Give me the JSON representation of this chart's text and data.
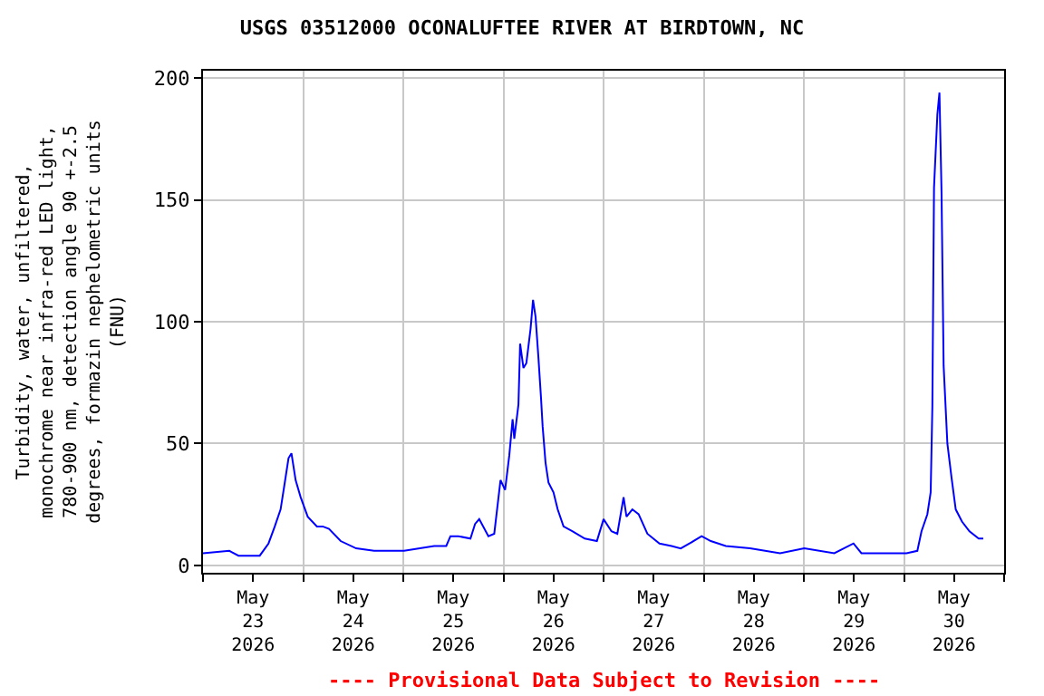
{
  "chart_data": {
    "type": "line",
    "title": "USGS 03512000 OCONALUFTEE RIVER AT BIRDTOWN, NC",
    "ylabel": "Turbidity, water, unfiltered,\nmonochrome near infra-red LED light,\n780-900 nm, detection angle 90 +-2.5\ndegrees, formazin nephelometric units\n(FNU)",
    "annotations": [
      "---- Provisional Data Subject to Revision ----"
    ],
    "x": [
      "2026-05-23T00:00",
      "2026-05-23T06:18",
      "2026-05-23T08:30",
      "2026-05-23T13:36",
      "2026-05-23T15:42",
      "2026-05-23T17:12",
      "2026-05-23T18:36",
      "2026-05-23T19:36",
      "2026-05-23T20:30",
      "2026-05-23T21:12",
      "2026-05-23T22:12",
      "2026-05-23T23:24",
      "2026-05-24T01:06",
      "2026-05-24T03:18",
      "2026-05-24T04:42",
      "2026-05-24T06:12",
      "2026-05-24T09:00",
      "2026-05-24T12:42",
      "2026-05-24T17:00",
      "2026-05-25T00:12",
      "2026-05-25T07:24",
      "2026-05-25T10:18",
      "2026-05-25T11:18",
      "2026-05-25T13:12",
      "2026-05-25T16:06",
      "2026-05-25T17:12",
      "2026-05-25T18:12",
      "2026-05-25T20:24",
      "2026-05-25T21:48",
      "2026-05-25T23:18",
      "2026-05-26T00:24",
      "2026-05-26T01:24",
      "2026-05-26T02:12",
      "2026-05-26T02:36",
      "2026-05-26T03:36",
      "2026-05-26T04:00",
      "2026-05-26T04:48",
      "2026-05-26T05:30",
      "2026-05-26T06:30",
      "2026-05-26T07:06",
      "2026-05-26T07:42",
      "2026-05-26T08:24",
      "2026-05-26T09:00",
      "2026-05-26T09:24",
      "2026-05-26T10:06",
      "2026-05-26T10:48",
      "2026-05-26T12:00",
      "2026-05-26T13:00",
      "2026-05-26T14:24",
      "2026-05-26T16:36",
      "2026-05-26T19:30",
      "2026-05-26T22:24",
      "2026-05-27T00:00",
      "2026-05-27T01:54",
      "2026-05-27T03:18",
      "2026-05-27T04:48",
      "2026-05-27T05:30",
      "2026-05-27T06:54",
      "2026-05-27T08:24",
      "2026-05-27T10:30",
      "2026-05-27T13:24",
      "2026-05-27T16:18",
      "2026-05-27T18:30",
      "2026-05-27T20:36",
      "2026-05-27T23:30",
      "2026-05-28T01:42",
      "2026-05-28T05:18",
      "2026-05-28T11:06",
      "2026-05-28T18:18",
      "2026-05-29T00:06",
      "2026-05-29T07:18",
      "2026-05-29T11:54",
      "2026-05-29T13:48",
      "2026-05-29T18:48",
      "2026-05-30T00:36",
      "2026-05-30T03:12",
      "2026-05-30T04:12",
      "2026-05-30T05:36",
      "2026-05-30T06:24",
      "2026-05-30T06:48",
      "2026-05-30T07:12",
      "2026-05-30T08:00",
      "2026-05-30T08:30",
      "2026-05-30T09:00",
      "2026-05-30T09:30",
      "2026-05-30T10:24",
      "2026-05-30T11:24",
      "2026-05-30T12:24",
      "2026-05-30T13:54",
      "2026-05-30T15:42",
      "2026-05-30T17:54",
      "2026-05-30T19:00"
    ],
    "series": [
      {
        "color": "#0000ff",
        "values": [
          5,
          6,
          4,
          4,
          9,
          16,
          23,
          34,
          44,
          46,
          35,
          28,
          20,
          16,
          16,
          15,
          10,
          7,
          6,
          6,
          8,
          8,
          12,
          12,
          11,
          17,
          19,
          12,
          13,
          35,
          31,
          45,
          60,
          52,
          66,
          91,
          81,
          83,
          97,
          109,
          102,
          85,
          69,
          57,
          42,
          34,
          30,
          23,
          16,
          14,
          11,
          10,
          19,
          14,
          13,
          28,
          20,
          23,
          21,
          13,
          9,
          8,
          7,
          9,
          12,
          10,
          8,
          7,
          5,
          7,
          5,
          9,
          5,
          5,
          5,
          6,
          14,
          21,
          30,
          65,
          155,
          185,
          194,
          153,
          82,
          50,
          36,
          23,
          18,
          14,
          11,
          11
        ]
      }
    ],
    "xlim": [
      "2026-05-23T00:00",
      "2026-05-31T00:00"
    ],
    "xticks": [
      {
        "value": "2026-05-23T00:00",
        "label": null
      },
      {
        "value": "2026-05-23T12:00",
        "label": "May\n23\n2026"
      },
      {
        "value": "2026-05-24T00:00",
        "label": null
      },
      {
        "value": "2026-05-24T12:00",
        "label": "May\n24\n2026"
      },
      {
        "value": "2026-05-25T00:00",
        "label": null
      },
      {
        "value": "2026-05-25T12:00",
        "label": "May\n25\n2026"
      },
      {
        "value": "2026-05-26T00:00",
        "label": null
      },
      {
        "value": "2026-05-26T12:00",
        "label": "May\n26\n2026"
      },
      {
        "value": "2026-05-27T00:00",
        "label": null
      },
      {
        "value": "2026-05-27T12:00",
        "label": "May\n27\n2026"
      },
      {
        "value": "2026-05-28T00:00",
        "label": null
      },
      {
        "value": "2026-05-28T12:00",
        "label": "May\n28\n2026"
      },
      {
        "value": "2026-05-29T00:00",
        "label": null
      },
      {
        "value": "2026-05-29T12:00",
        "label": "May\n29\n2026"
      },
      {
        "value": "2026-05-30T00:00",
        "label": null
      },
      {
        "value": "2026-05-30T12:00",
        "label": "May\n30\n2026"
      },
      {
        "value": "2026-05-31T00:00",
        "label": null
      }
    ],
    "ylim": [
      -3,
      203
    ],
    "yticks": [
      0,
      50,
      100,
      150,
      200
    ],
    "grid": true,
    "marker": "none",
    "line_style": "solid"
  }
}
